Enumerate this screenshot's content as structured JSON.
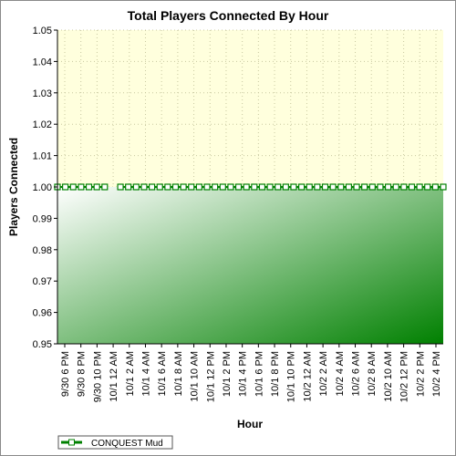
{
  "chart_data": {
    "type": "area",
    "title": "Total Players Connected By Hour",
    "xlabel": "Hour",
    "ylabel": "Players Connected",
    "ylim": [
      0.95,
      1.05
    ],
    "yticks": [
      "0.95",
      "0.96",
      "0.97",
      "0.98",
      "0.99",
      "1.00",
      "1.01",
      "1.02",
      "1.03",
      "1.04",
      "1.05"
    ],
    "x_labels": [
      "9/30 6 PM",
      "9/30 8 PM",
      "9/30 10 PM",
      "10/1 12 AM",
      "10/1 2 AM",
      "10/1 4 AM",
      "10/1 6 AM",
      "10/1 8 AM",
      "10/1 10 AM",
      "10/1 12 PM",
      "10/1 2 PM",
      "10/1 4 PM",
      "10/1 6 PM",
      "10/1 8 PM",
      "10/1 10 PM",
      "10/2 12 AM",
      "10/2 2 AM",
      "10/2 4 AM",
      "10/2 6 AM",
      "10/2 8 AM",
      "10/2 10 AM",
      "10/2 12 PM",
      "10/2 2 PM",
      "10/2 4 PM"
    ],
    "grid": true,
    "legend_position": "bottom-left",
    "colors": {
      "plot_bg": "#ffffdd",
      "series": "#008000",
      "fill_light": "#ffffff",
      "fill_dark": "#008000"
    },
    "series": [
      {
        "name": "CONQUEST Mud",
        "values": [
          1,
          1,
          1,
          1,
          1,
          1,
          1,
          null,
          1,
          1,
          1,
          1,
          1,
          1,
          1,
          1,
          1,
          1,
          1,
          1,
          1,
          1,
          1,
          1,
          1,
          1,
          1,
          1,
          1,
          1,
          1,
          1,
          1,
          1,
          1,
          1,
          1,
          1,
          1,
          1,
          1,
          1,
          1,
          1,
          1,
          1,
          1,
          1,
          1,
          1
        ]
      }
    ]
  }
}
